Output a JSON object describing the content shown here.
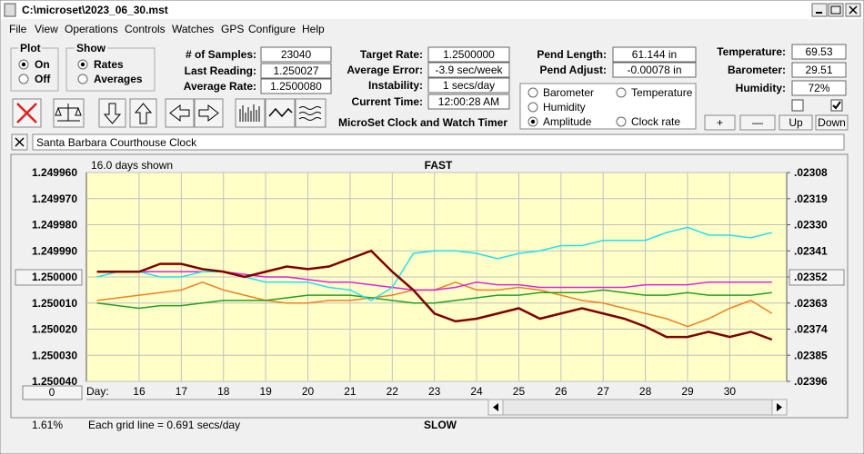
{
  "window": {
    "title": "C:\\microset\\2023_06_30.mst"
  },
  "menu": [
    "File",
    "View",
    "Operations",
    "Controls",
    "Watches",
    "GPS",
    "Configure",
    "Help"
  ],
  "plot_group": {
    "title": "Plot",
    "options": [
      "On",
      "Off"
    ],
    "selected": 0
  },
  "show_group": {
    "title": "Show",
    "options": [
      "Rates",
      "Averages"
    ],
    "selected": 0
  },
  "field_columns": [
    [
      {
        "label": "# of Samples:",
        "value": "23040"
      },
      {
        "label": "Last Reading:",
        "value": "1.250027"
      },
      {
        "label": "Average Rate:",
        "value": "1.2500080"
      }
    ],
    [
      {
        "label": "Target Rate:",
        "value": "1.2500000"
      },
      {
        "label": "Average Error:",
        "value": "-3.9 sec/week"
      },
      {
        "label": "Instability:",
        "value": "1 secs/day"
      },
      {
        "label": "Current Time:",
        "value": "12:00:28 AM"
      }
    ],
    [
      {
        "label": "Pend Length:",
        "value": "61.144 in"
      },
      {
        "label": "Pend Adjust:",
        "value": "-0.00078 in"
      }
    ],
    [
      {
        "label": "Temperature:",
        "value": "69.53"
      },
      {
        "label": "Barometer:",
        "value": "29.51"
      },
      {
        "label": "Humidity:",
        "value": "72%"
      }
    ]
  ],
  "app_name": "MicroSet Clock and Watch Timer",
  "checkboxes": [
    false,
    true
  ],
  "buttons": [
    "+",
    "—",
    "Up",
    "Down"
  ],
  "description": "Santa Barbara Courthouse Clock",
  "chart_data": {
    "type": "line",
    "days_shown": "16.0 days shown",
    "top_label": "FAST",
    "bottom_label": "SLOW",
    "grid_note": "Each grid line = 0.691 secs/day",
    "percent": "1.61%",
    "offset_button": "0",
    "x_label": "Day:",
    "grid": true,
    "selected_series": 3,
    "xlim": [
      14.75,
      31.35
    ],
    "xticks": [
      16,
      17,
      18,
      19,
      20,
      21,
      22,
      23,
      24,
      25,
      26,
      27,
      28,
      29,
      30
    ],
    "ylim": [
      1.25004,
      1.24996
    ],
    "yticks": [
      {
        "value": 1.24996,
        "label": "1.249960"
      },
      {
        "value": 1.24997,
        "label": "1.249970"
      },
      {
        "value": 1.24998,
        "label": "1.249980"
      },
      {
        "value": 1.24999,
        "label": "1.249990"
      },
      {
        "value": 1.25,
        "label": "1.250000"
      },
      {
        "value": 1.25001,
        "label": "1.250010"
      },
      {
        "value": 1.25002,
        "label": "1.250020"
      },
      {
        "value": 1.25003,
        "label": "1.250030"
      },
      {
        "value": 1.25004,
        "label": "1.250040"
      }
    ],
    "y2lim": [
      0.02396,
      0.02308
    ],
    "y2ticks": [
      {
        "value": 0.02308,
        "label": ".02308"
      },
      {
        "value": 0.02319,
        "label": ".02319"
      },
      {
        "value": 0.0233,
        "label": ".02330"
      },
      {
        "value": 0.02341,
        "label": ".02341"
      },
      {
        "value": 0.02352,
        "label": ".02352"
      },
      {
        "value": 0.02363,
        "label": ".02363"
      },
      {
        "value": 0.02374,
        "label": ".02374"
      },
      {
        "value": 0.02385,
        "label": ".02385"
      },
      {
        "value": 0.02396,
        "label": ".02396"
      }
    ],
    "x": [
      15,
      15.5,
      16,
      16.5,
      17,
      17.5,
      18,
      18.5,
      19,
      19.5,
      20,
      20.5,
      21,
      21.5,
      22,
      22.5,
      23,
      23.5,
      24,
      24.5,
      25,
      25.5,
      26,
      26.5,
      27,
      27.5,
      28,
      28.5,
      29,
      29.5,
      30,
      30.5,
      31
    ],
    "series": [
      {
        "name": "Barometer",
        "color": "#f08020",
        "values": [
          1.250009,
          1.250008,
          1.250007,
          1.250006,
          1.250005,
          1.250002,
          1.250005,
          1.250007,
          1.250009,
          1.25001,
          1.25001,
          1.250009,
          1.250009,
          1.250008,
          1.250007,
          1.250005,
          1.250005,
          1.250002,
          1.250005,
          1.250005,
          1.250004,
          1.250005,
          1.250007,
          1.250009,
          1.25001,
          1.250012,
          1.250014,
          1.250016,
          1.250019,
          1.250016,
          1.250012,
          1.250009,
          1.250014
        ]
      },
      {
        "name": "Temperature",
        "color": "#20a020",
        "values": [
          1.25001,
          1.250011,
          1.250012,
          1.250011,
          1.250011,
          1.25001,
          1.250009,
          1.250009,
          1.250009,
          1.250008,
          1.250007,
          1.250007,
          1.250007,
          1.250008,
          1.250009,
          1.25001,
          1.25001,
          1.250009,
          1.250008,
          1.250007,
          1.250007,
          1.250006,
          1.250006,
          1.250006,
          1.250005,
          1.250006,
          1.250007,
          1.250007,
          1.250006,
          1.250007,
          1.250007,
          1.250007,
          1.250006
        ]
      },
      {
        "name": "Humidity",
        "color": "#e020e0",
        "values": [
          1.249998,
          1.249998,
          1.249998,
          1.249998,
          1.249998,
          1.249998,
          1.249998,
          1.249999,
          1.25,
          1.25,
          1.250001,
          1.250002,
          1.250002,
          1.250003,
          1.250004,
          1.250005,
          1.250005,
          1.250004,
          1.250002,
          1.250003,
          1.250003,
          1.250004,
          1.250004,
          1.250004,
          1.250004,
          1.250004,
          1.250003,
          1.250003,
          1.250003,
          1.250002,
          1.250002,
          1.250002,
          1.250002
        ]
      },
      {
        "name": "Amplitude",
        "color": "#20e0f0",
        "values": [
          1.25,
          1.249998,
          1.249998,
          1.25,
          1.25,
          1.249998,
          1.249998,
          1.25,
          1.250002,
          1.250002,
          1.250002,
          1.250004,
          1.250005,
          1.250009,
          1.250004,
          1.249991,
          1.24999,
          1.24999,
          1.249991,
          1.249993,
          1.249991,
          1.24999,
          1.249988,
          1.249988,
          1.249986,
          1.249986,
          1.249986,
          1.249983,
          1.249981,
          1.249984,
          1.249984,
          1.249985,
          1.249983
        ]
      },
      {
        "name": "Clock rate",
        "color": "#800000",
        "values": [
          1.249998,
          1.249998,
          1.249998,
          1.249995,
          1.249995,
          1.249997,
          1.249998,
          1.25,
          1.249998,
          1.249996,
          1.249997,
          1.249996,
          1.249993,
          1.24999,
          1.249998,
          1.250005,
          1.250014,
          1.250017,
          1.250016,
          1.250014,
          1.250012,
          1.250016,
          1.250014,
          1.250012,
          1.250014,
          1.250016,
          1.250019,
          1.250023,
          1.250023,
          1.250021,
          1.250023,
          1.250021,
          1.250024
        ]
      }
    ]
  }
}
